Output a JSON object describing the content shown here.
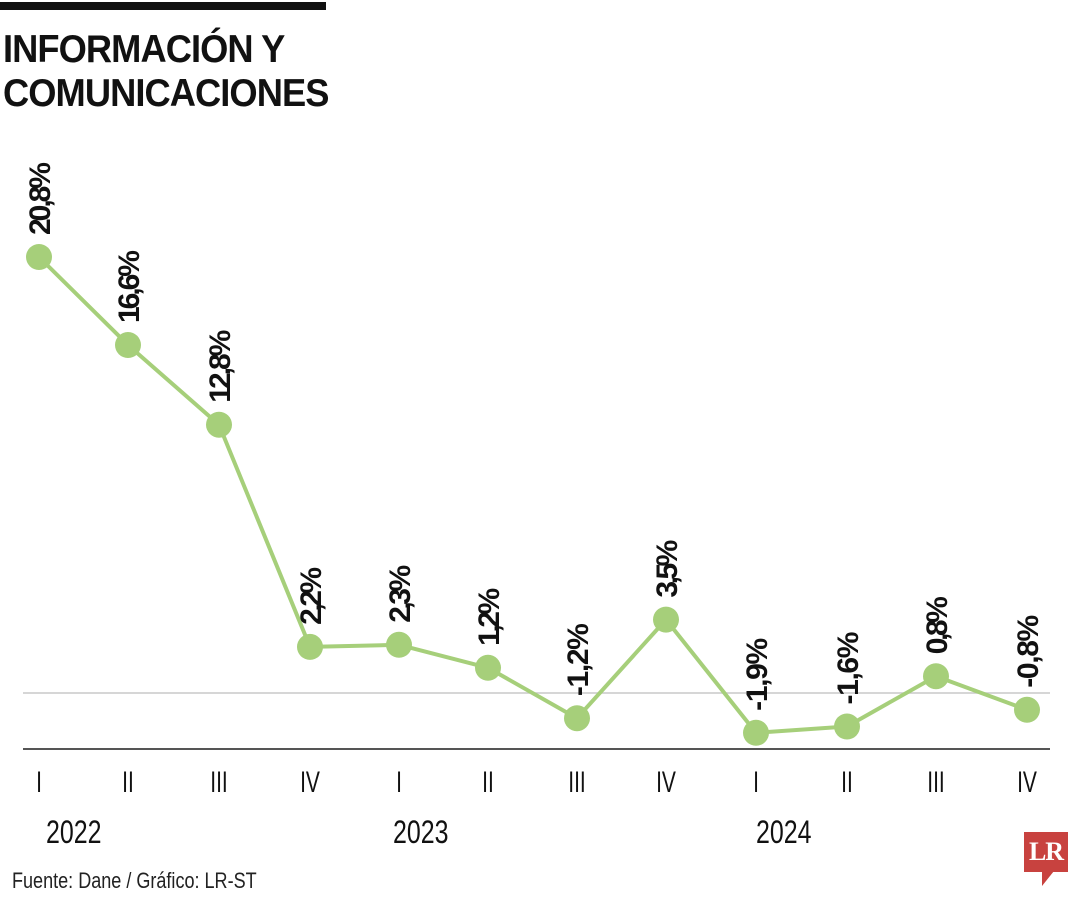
{
  "header": {
    "title_line1": "INFORMACIÓN Y",
    "title_line2": "COMUNICACIONES"
  },
  "footer": {
    "source": "Fuente: Dane / Gráfico: LR-ST",
    "logo_text": "LR"
  },
  "colors": {
    "line": "#a6cf7a",
    "marker": "#a6cf7a",
    "zero_line": "#c8c8c8",
    "baseline": "#555555",
    "logo": "#c8423f"
  },
  "chart_data": {
    "type": "line",
    "title": "INFORMACIÓN Y COMUNICACIONES",
    "xlabel": "",
    "ylabel": "",
    "categories": [
      "I 2022",
      "II 2022",
      "III 2022",
      "IV 2022",
      "I 2023",
      "II 2023",
      "III 2023",
      "IV 2023",
      "I 2024",
      "II 2024",
      "III 2024",
      "IV 2024"
    ],
    "quarter_labels": [
      "I",
      "II",
      "III",
      "IV",
      "I",
      "II",
      "III",
      "IV",
      "I",
      "II",
      "III",
      "IV"
    ],
    "year_labels": [
      "2022",
      "2023",
      "2024"
    ],
    "series": [
      {
        "name": "Información y comunicaciones",
        "values": [
          20.8,
          16.6,
          12.8,
          2.2,
          2.3,
          1.2,
          -1.2,
          3.5,
          -1.9,
          -1.6,
          0.8,
          -0.8
        ],
        "labels": [
          "20,8%",
          "16,6%",
          "12,8%",
          "2,2%",
          "2,3%",
          "1,2%",
          "-1,2%",
          "3,5%",
          "-1,9%",
          "-1,6%",
          "0,8%",
          "-0,8%"
        ]
      }
    ],
    "grid": false,
    "zero_line": true,
    "legend": "none",
    "source": "Fuente: Dane / Gráfico: LR-ST"
  }
}
